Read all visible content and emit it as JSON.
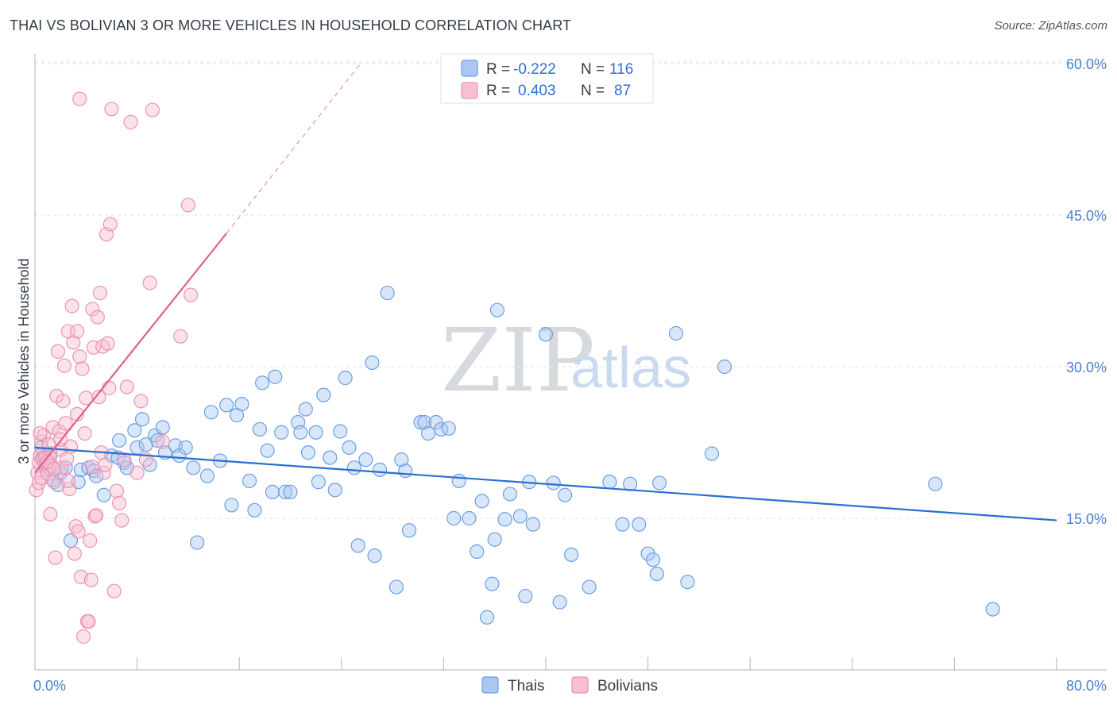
{
  "title": "THAI VS BOLIVIAN 3 OR MORE VEHICLES IN HOUSEHOLD CORRELATION CHART",
  "source": "Source: ZipAtlas.com",
  "watermark": {
    "part1": "ZIP",
    "part2": "atlas"
  },
  "colors": {
    "thais_fill": "#a9c7f2",
    "thais_stroke": "#6d9fe0",
    "thais_line": "#2a6fcf",
    "bolivians_fill": "#f7bfd1",
    "bolivians_stroke": "#ec93b1",
    "bolivians_line": "#e0608e",
    "grid": "#dde1e6",
    "axis": "#b0b5bc"
  },
  "stats": {
    "thais": {
      "r_label": "R =",
      "r_value": "-0.222",
      "n_label": "N =",
      "n_value": "116"
    },
    "bolivians": {
      "r_label": "R =",
      "r_value": "0.403",
      "n_label": "N =",
      "n_value": "87"
    }
  },
  "chart_data": {
    "type": "scatter",
    "title": "THAI VS BOLIVIAN 3 OR MORE VEHICLES IN HOUSEHOLD CORRELATION CHART",
    "xlabel": "",
    "ylabel": "3 or more Vehicles in Household",
    "xlim": [
      0,
      80
    ],
    "ylim": [
      0,
      60
    ],
    "x_tick_labels": [
      "0.0%",
      "80.0%"
    ],
    "y_ticks": [
      15,
      30,
      45,
      60
    ],
    "y_tick_labels": [
      "15.0%",
      "30.0%",
      "45.0%",
      "60.0%"
    ],
    "legend_position": "bottom-center",
    "legend": [
      "Thais",
      "Bolivians"
    ],
    "series": [
      {
        "name": "Thais",
        "trend": {
          "x": [
            0,
            80
          ],
          "y": [
            22.0,
            14.8
          ]
        },
        "points": [
          [
            0.5,
            22.0
          ],
          [
            0.6,
            21.0
          ],
          [
            0.8,
            20.4
          ],
          [
            0.9,
            19.8
          ],
          [
            1.2,
            21.4
          ],
          [
            1.4,
            18.8
          ],
          [
            1.8,
            18.3
          ],
          [
            2.0,
            19.5
          ],
          [
            2.4,
            20.0
          ],
          [
            2.8,
            12.8
          ],
          [
            3.4,
            18.6
          ],
          [
            3.6,
            19.8
          ],
          [
            4.2,
            20.0
          ],
          [
            4.6,
            19.7
          ],
          [
            4.8,
            19.2
          ],
          [
            5.4,
            17.3
          ],
          [
            6.0,
            21.2
          ],
          [
            6.5,
            21.0
          ],
          [
            6.6,
            22.7
          ],
          [
            7.0,
            20.5
          ],
          [
            7.2,
            20.0
          ],
          [
            7.8,
            23.7
          ],
          [
            8.0,
            22.0
          ],
          [
            8.4,
            24.8
          ],
          [
            8.7,
            22.3
          ],
          [
            9.0,
            20.3
          ],
          [
            9.4,
            23.2
          ],
          [
            9.6,
            22.7
          ],
          [
            10.0,
            24.0
          ],
          [
            10.2,
            21.5
          ],
          [
            11.0,
            22.2
          ],
          [
            11.3,
            21.2
          ],
          [
            11.8,
            22.0
          ],
          [
            12.4,
            20.0
          ],
          [
            12.7,
            12.6
          ],
          [
            13.5,
            19.2
          ],
          [
            13.8,
            25.5
          ],
          [
            14.5,
            20.7
          ],
          [
            15.0,
            26.2
          ],
          [
            15.4,
            16.3
          ],
          [
            15.8,
            25.2
          ],
          [
            16.2,
            26.3
          ],
          [
            16.8,
            18.7
          ],
          [
            17.2,
            15.8
          ],
          [
            17.6,
            23.8
          ],
          [
            17.8,
            28.4
          ],
          [
            18.2,
            21.7
          ],
          [
            18.6,
            17.6
          ],
          [
            18.8,
            29.0
          ],
          [
            19.3,
            23.5
          ],
          [
            19.6,
            17.6
          ],
          [
            20.0,
            17.6
          ],
          [
            20.6,
            24.5
          ],
          [
            20.8,
            23.5
          ],
          [
            21.2,
            25.8
          ],
          [
            21.4,
            21.5
          ],
          [
            22.0,
            23.5
          ],
          [
            22.2,
            18.6
          ],
          [
            22.6,
            27.2
          ],
          [
            23.1,
            21.0
          ],
          [
            23.5,
            17.8
          ],
          [
            23.9,
            23.6
          ],
          [
            24.3,
            28.9
          ],
          [
            24.6,
            22.0
          ],
          [
            25.0,
            20.0
          ],
          [
            25.3,
            12.3
          ],
          [
            25.9,
            20.8
          ],
          [
            26.4,
            30.4
          ],
          [
            26.6,
            11.3
          ],
          [
            27.0,
            19.8
          ],
          [
            27.6,
            37.3
          ],
          [
            28.3,
            8.2
          ],
          [
            28.7,
            20.8
          ],
          [
            29.0,
            19.7
          ],
          [
            29.3,
            13.8
          ],
          [
            30.2,
            24.5
          ],
          [
            30.5,
            24.5
          ],
          [
            30.8,
            23.4
          ],
          [
            31.4,
            24.5
          ],
          [
            31.8,
            23.8
          ],
          [
            32.4,
            23.9
          ],
          [
            32.8,
            15.0
          ],
          [
            33.2,
            18.7
          ],
          [
            34.0,
            15.0
          ],
          [
            34.6,
            11.7
          ],
          [
            35.0,
            16.7
          ],
          [
            35.4,
            5.2
          ],
          [
            35.8,
            8.5
          ],
          [
            36.0,
            12.9
          ],
          [
            36.2,
            35.6
          ],
          [
            36.8,
            14.9
          ],
          [
            37.2,
            17.4
          ],
          [
            38.0,
            15.2
          ],
          [
            38.4,
            7.3
          ],
          [
            38.7,
            18.6
          ],
          [
            39.0,
            14.4
          ],
          [
            40.0,
            33.2
          ],
          [
            40.6,
            18.5
          ],
          [
            41.1,
            6.7
          ],
          [
            41.5,
            17.3
          ],
          [
            42.0,
            11.4
          ],
          [
            43.4,
            8.2
          ],
          [
            45.0,
            18.6
          ],
          [
            46.0,
            14.4
          ],
          [
            46.6,
            18.4
          ],
          [
            47.3,
            14.4
          ],
          [
            48.0,
            11.5
          ],
          [
            48.4,
            10.9
          ],
          [
            48.7,
            9.5
          ],
          [
            48.9,
            18.5
          ],
          [
            50.2,
            33.3
          ],
          [
            51.1,
            8.7
          ],
          [
            53.0,
            21.4
          ],
          [
            54.0,
            30.0
          ],
          [
            70.5,
            18.4
          ],
          [
            75.0,
            6.0
          ]
        ]
      },
      {
        "name": "Bolivians",
        "trend": {
          "x": [
            0,
            15.0
          ],
          "y": [
            19.5,
            43.2
          ],
          "dashed_extension": {
            "x": [
              15.0,
              25.5
            ],
            "y": [
              43.2,
              60.0
            ]
          }
        },
        "points": [
          [
            0.1,
            17.8
          ],
          [
            0.2,
            19.5
          ],
          [
            0.3,
            20.5
          ],
          [
            0.3,
            18.5
          ],
          [
            0.4,
            21.2
          ],
          [
            0.5,
            22.6
          ],
          [
            0.5,
            19.0
          ],
          [
            0.6,
            20.8
          ],
          [
            0.7,
            23.2
          ],
          [
            0.8,
            21.0
          ],
          [
            0.9,
            20.5
          ],
          [
            1.0,
            19.4
          ],
          [
            1.1,
            22.3
          ],
          [
            1.2,
            21.1
          ],
          [
            1.2,
            15.4
          ],
          [
            1.3,
            20.2
          ],
          [
            1.4,
            24.0
          ],
          [
            1.5,
            18.6
          ],
          [
            1.6,
            11.1
          ],
          [
            1.7,
            27.1
          ],
          [
            1.8,
            31.5
          ],
          [
            1.9,
            23.6
          ],
          [
            2.0,
            21.8
          ],
          [
            2.1,
            20.0
          ],
          [
            2.2,
            26.6
          ],
          [
            2.3,
            30.1
          ],
          [
            2.4,
            24.4
          ],
          [
            2.5,
            20.9
          ],
          [
            2.6,
            33.5
          ],
          [
            2.7,
            17.9
          ],
          [
            2.8,
            22.1
          ],
          [
            2.9,
            36.0
          ],
          [
            3.0,
            32.4
          ],
          [
            3.1,
            11.5
          ],
          [
            3.2,
            14.2
          ],
          [
            3.3,
            33.5
          ],
          [
            3.4,
            13.7
          ],
          [
            3.5,
            31.0
          ],
          [
            3.6,
            9.2
          ],
          [
            3.7,
            29.8
          ],
          [
            3.8,
            3.3
          ],
          [
            3.9,
            23.4
          ],
          [
            4.0,
            26.9
          ],
          [
            4.1,
            4.8
          ],
          [
            4.2,
            4.8
          ],
          [
            4.3,
            12.8
          ],
          [
            4.4,
            8.9
          ],
          [
            4.5,
            35.7
          ],
          [
            4.6,
            31.9
          ],
          [
            4.7,
            15.2
          ],
          [
            4.8,
            15.3
          ],
          [
            4.9,
            34.9
          ],
          [
            5.0,
            27.0
          ],
          [
            5.1,
            37.3
          ],
          [
            5.2,
            21.5
          ],
          [
            5.3,
            32.0
          ],
          [
            5.4,
            19.5
          ],
          [
            5.5,
            20.3
          ],
          [
            5.6,
            43.1
          ],
          [
            5.7,
            32.3
          ],
          [
            5.8,
            27.9
          ],
          [
            5.9,
            44.1
          ],
          [
            6.0,
            55.5
          ],
          [
            6.2,
            7.8
          ],
          [
            6.4,
            17.7
          ],
          [
            6.6,
            16.5
          ],
          [
            6.8,
            14.8
          ],
          [
            7.0,
            20.8
          ],
          [
            7.2,
            28.0
          ],
          [
            7.5,
            54.2
          ],
          [
            8.0,
            19.5
          ],
          [
            8.3,
            26.6
          ],
          [
            8.7,
            20.8
          ],
          [
            9.0,
            38.3
          ],
          [
            9.2,
            55.4
          ],
          [
            10.0,
            22.6
          ],
          [
            11.4,
            33.0
          ],
          [
            12.0,
            46.0
          ],
          [
            12.2,
            37.1
          ],
          [
            3.5,
            56.5
          ],
          [
            1.0,
            20.6
          ],
          [
            1.5,
            19.9
          ],
          [
            2.0,
            22.8
          ],
          [
            2.6,
            18.7
          ],
          [
            3.3,
            25.3
          ],
          [
            4.5,
            20.1
          ],
          [
            0.4,
            23.4
          ]
        ]
      }
    ]
  }
}
